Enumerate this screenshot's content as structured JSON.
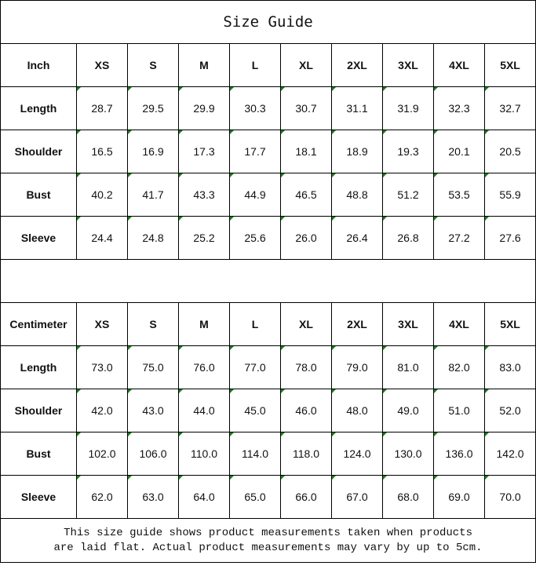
{
  "title": "Size Guide",
  "sizes": [
    "XS",
    "S",
    "M",
    "L",
    "XL",
    "2XL",
    "3XL",
    "4XL",
    "5XL"
  ],
  "inch": {
    "unit": "Inch",
    "rows": [
      {
        "label": "Length",
        "values": [
          "28.7",
          "29.5",
          "29.9",
          "30.3",
          "30.7",
          "31.1",
          "31.9",
          "32.3",
          "32.7"
        ]
      },
      {
        "label": "Shoulder",
        "values": [
          "16.5",
          "16.9",
          "17.3",
          "17.7",
          "18.1",
          "18.9",
          "19.3",
          "20.1",
          "20.5"
        ]
      },
      {
        "label": "Bust",
        "values": [
          "40.2",
          "41.7",
          "43.3",
          "44.9",
          "46.5",
          "48.8",
          "51.2",
          "53.5",
          "55.9"
        ]
      },
      {
        "label": "Sleeve",
        "values": [
          "24.4",
          "24.8",
          "25.2",
          "25.6",
          "26.0",
          "26.4",
          "26.8",
          "27.2",
          "27.6"
        ]
      }
    ]
  },
  "cm": {
    "unit": "Centimeter",
    "rows": [
      {
        "label": "Length",
        "values": [
          "73.0",
          "75.0",
          "76.0",
          "77.0",
          "78.0",
          "79.0",
          "81.0",
          "82.0",
          "83.0"
        ]
      },
      {
        "label": "Shoulder",
        "values": [
          "42.0",
          "43.0",
          "44.0",
          "45.0",
          "46.0",
          "48.0",
          "49.0",
          "51.0",
          "52.0"
        ]
      },
      {
        "label": "Bust",
        "values": [
          "102.0",
          "106.0",
          "110.0",
          "114.0",
          "118.0",
          "124.0",
          "130.0",
          "136.0",
          "142.0"
        ]
      },
      {
        "label": "Sleeve",
        "values": [
          "62.0",
          "63.0",
          "64.0",
          "65.0",
          "66.0",
          "67.0",
          "68.0",
          "69.0",
          "70.0"
        ]
      }
    ]
  },
  "note": {
    "line1": "This size guide shows product measurements taken when products",
    "line2": "are laid flat. Actual product measurements may vary by up to 5cm."
  },
  "colors": {
    "indicator": "#1a7f1a",
    "border": "#000000"
  }
}
